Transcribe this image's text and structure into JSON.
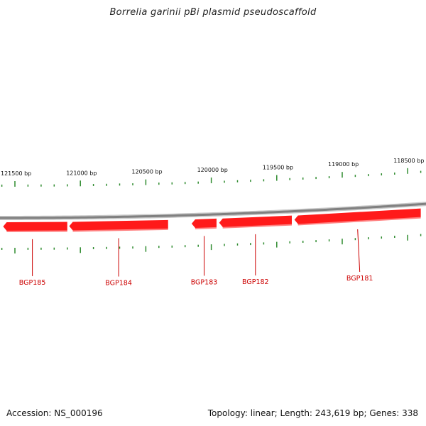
{
  "title": "Borrelia garinii pBi plasmid pseudoscaffold",
  "footer": {
    "accession_label": "Accession:",
    "accession_value": "NS_000196",
    "accession": "Accession: NS_000196",
    "topology": "Topology: linear; Length: 243,619 bp; Genes: 338"
  },
  "colors": {
    "backbone": "#808080",
    "gene_fill": "#ff1a1a",
    "gene_shade": "#ff8080",
    "tick": "#2e8b2e",
    "gene_label": "#cc0000",
    "label_line": "#cc0000"
  },
  "scale_labels": [
    {
      "pos": 121500,
      "text": "121500 bp"
    },
    {
      "pos": 121000,
      "text": "121000 bp"
    },
    {
      "pos": 120500,
      "text": "120500 bp"
    },
    {
      "pos": 120000,
      "text": "120000 bp"
    },
    {
      "pos": 119500,
      "text": "119500 bp"
    },
    {
      "pos": 119000,
      "text": "119000 bp"
    },
    {
      "pos": 118500,
      "text": "118500 bp"
    }
  ],
  "genes": [
    {
      "name": "BGP185",
      "start": 121590,
      "end": 121100,
      "strand": "-"
    },
    {
      "name": "BGP184",
      "start": 121085,
      "end": 120330,
      "strand": "-"
    },
    {
      "name": "BGP183",
      "start": 120150,
      "end": 119960,
      "strand": "-"
    },
    {
      "name": "BGP182",
      "start": 119940,
      "end": 119385,
      "strand": "-"
    },
    {
      "name": "BGP181",
      "start": 119365,
      "end": 118400,
      "strand": "-"
    }
  ]
}
